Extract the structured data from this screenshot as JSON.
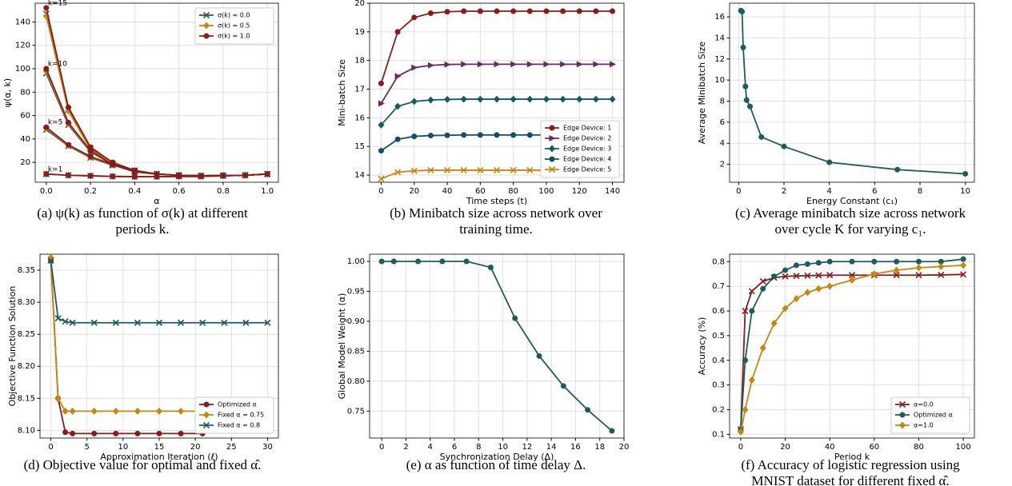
{
  "chart_data": [
    {
      "type": "line",
      "xlabel": "α",
      "ylabel": "ψ(α, k)",
      "caption": [
        "(a) ψ(k) as function of σ(k) at different",
        "periods k."
      ],
      "x": [
        0.0,
        0.1,
        0.2,
        0.3,
        0.4,
        0.5,
        0.6,
        0.7,
        0.8,
        0.9,
        1.0
      ],
      "xlim": [
        -0.05,
        1.05
      ],
      "xticks": [
        {
          "value": 0,
          "label": "0.0"
        },
        0.2,
        0.4,
        0.6,
        0.8,
        {
          "value": 1,
          "label": "1.0"
        }
      ],
      "ylim": [
        3,
        156
      ],
      "yticks": [
        20,
        40,
        60,
        80,
        100,
        120,
        140
      ],
      "grid": true,
      "legend": "upper-right",
      "curve_labels": [
        "k=15",
        "k=10",
        "k=5",
        "k=1"
      ],
      "series": [
        {
          "name": "σ(k) = 0.0",
          "color": "#1d5c5c",
          "marker": "x",
          "curves": [
            [
              147,
              65,
              32,
              19,
              13,
              10,
              9,
              8.5,
              8.8,
              9,
              10
            ],
            [
              96,
              52,
              29,
              18,
              12,
              10,
              9,
              8.5,
              8.8,
              9,
              10
            ],
            [
              48,
              34,
              24,
              17.5,
              13,
              10,
              9,
              8.5,
              8.8,
              9,
              10
            ],
            [
              10,
              9,
              8.5,
              8,
              7.8,
              7.8,
              8,
              8,
              8.5,
              9,
              10
            ]
          ]
        },
        {
          "name": "σ(k) = 0.5",
          "color": "#c8860a",
          "marker": "d",
          "curves": [
            [
              145,
              64,
              31,
              19,
              13,
              10,
              9,
              8.5,
              8.8,
              9,
              10
            ],
            [
              98,
              53,
              29.5,
              18,
              12,
              10,
              9,
              8.5,
              8.8,
              9,
              10
            ],
            [
              49,
              34.5,
              24.5,
              17.8,
              13,
              10,
              9,
              8.5,
              8.8,
              9,
              10
            ],
            [
              10,
              9,
              8.5,
              8,
              7.8,
              7.8,
              8,
              8,
              8.5,
              9,
              10
            ]
          ]
        },
        {
          "name": "σ(k) = 1.0",
          "color": "#8b1a1a",
          "marker": "o",
          "curves": [
            [
              152,
              67,
              33,
              20,
              13,
              10,
              9,
              8.5,
              8.8,
              9,
              10
            ],
            [
              100,
              54,
              30,
              18,
              12,
              10,
              9,
              8.5,
              8.8,
              9,
              10
            ],
            [
              50,
              35,
              25,
              18,
              13,
              10,
              9,
              8.5,
              8.8,
              9,
              10
            ],
            [
              10,
              9,
              8.5,
              8,
              7.8,
              7.8,
              8,
              8,
              8.5,
              9,
              10
            ]
          ]
        }
      ]
    },
    {
      "type": "line",
      "xlabel": "Time steps (t)",
      "ylabel": "Mini-batch Size",
      "caption": [
        "(b) Minibatch size across network over",
        "training time."
      ],
      "x": [
        0,
        10,
        20,
        30,
        40,
        50,
        60,
        70,
        80,
        90,
        100,
        110,
        120,
        130,
        140
      ],
      "xlim": [
        -7,
        147
      ],
      "xticks": [
        0,
        20,
        40,
        60,
        80,
        100,
        120,
        140
      ],
      "ylim": [
        13.75,
        20
      ],
      "yticks": [
        14,
        15,
        16,
        17,
        18,
        19,
        20
      ],
      "grid": true,
      "legend": "lower-right",
      "series": [
        {
          "name": "Edge Device: 1",
          "color": "#8b1a1a",
          "marker": "o",
          "values": [
            17.2,
            19.0,
            19.5,
            19.65,
            19.7,
            19.72,
            19.72,
            19.72,
            19.72,
            19.72,
            19.72,
            19.72,
            19.72,
            19.72,
            19.72
          ]
        },
        {
          "name": "Edge Device: 2",
          "color": "#6b2a5e",
          "marker": ">",
          "values": [
            16.5,
            17.45,
            17.75,
            17.83,
            17.86,
            17.87,
            17.87,
            17.87,
            17.87,
            17.87,
            17.87,
            17.87,
            17.87,
            17.87,
            17.87
          ]
        },
        {
          "name": "Edge Device: 3",
          "color": "#125e5e",
          "marker": "d",
          "values": [
            15.75,
            16.4,
            16.57,
            16.62,
            16.64,
            16.65,
            16.65,
            16.65,
            16.65,
            16.65,
            16.65,
            16.65,
            16.65,
            16.65,
            16.65
          ]
        },
        {
          "name": "Edge Device: 4",
          "color": "#124e6b",
          "marker": "o",
          "values": [
            14.85,
            15.25,
            15.35,
            15.38,
            15.39,
            15.4,
            15.4,
            15.4,
            15.4,
            15.4,
            15.4,
            15.4,
            15.4,
            15.4,
            15.4
          ]
        },
        {
          "name": "Edge Device: 5",
          "color": "#c8860a",
          "marker": "x",
          "values": [
            13.87,
            14.1,
            14.15,
            14.17,
            14.17,
            14.17,
            14.17,
            14.17,
            14.17,
            14.17,
            14.17,
            14.17,
            14.17,
            14.17,
            14.17
          ]
        }
      ]
    },
    {
      "type": "line",
      "xlabel": "Energy Constant (c₁)",
      "ylabel": "Average Minibatch Size",
      "caption": [
        "(c) Average minibatch size across network",
        "over cycle K for varying c₁."
      ],
      "x": [
        0.1,
        0.15,
        0.2,
        0.3,
        0.35,
        0.5,
        1,
        2,
        4,
        7,
        10
      ],
      "xlim": [
        -0.4,
        10.4
      ],
      "xticks": [
        0,
        2,
        4,
        6,
        8,
        10
      ],
      "ylim": [
        0.3,
        17.3
      ],
      "yticks": [
        2,
        4,
        6,
        8,
        10,
        12,
        14,
        16
      ],
      "grid": true,
      "series": [
        {
          "color": "#1d5c5c",
          "marker": "o",
          "values": [
            16.6,
            16.5,
            13.1,
            9.4,
            8.1,
            7.5,
            4.6,
            3.7,
            2.2,
            1.5,
            1.1
          ]
        }
      ]
    },
    {
      "type": "line",
      "xlabel": "Approximation Iteration (ℓ)",
      "ylabel": "Objective Function Solution",
      "caption": [
        "(d) Objective value for optimal and fixed α̂."
      ],
      "x": [
        0,
        1,
        2,
        3,
        6,
        9,
        12,
        15,
        18,
        21,
        24,
        27,
        30
      ],
      "xlim": [
        -1.5,
        31.5
      ],
      "xticks": [
        0,
        5,
        10,
        15,
        20,
        25,
        30
      ],
      "ylim": [
        8.088,
        8.375
      ],
      "yticks": [
        {
          "value": 8.1,
          "label": "8.10"
        },
        8.15,
        {
          "value": 8.2,
          "label": "8.20"
        },
        8.25,
        {
          "value": 8.3,
          "label": "8.30"
        },
        8.35
      ],
      "grid": true,
      "legend": "lower-right",
      "series": [
        {
          "name": "Optimized α",
          "color": "#8b1a1a",
          "marker": "o",
          "values": [
            8.365,
            8.15,
            8.097,
            8.095,
            8.095,
            8.095,
            8.095,
            8.095,
            8.095,
            8.095,
            null,
            null,
            null
          ]
        },
        {
          "name": "Fixed α = 0.75",
          "color": "#c8860a",
          "marker": "d",
          "values": [
            8.37,
            8.15,
            8.13,
            8.13,
            8.13,
            8.13,
            8.13,
            8.13,
            8.13,
            8.13,
            8.13,
            null,
            null
          ]
        },
        {
          "name": "Fixed α = 0.8",
          "color": "#1d5c5c",
          "marker": "x",
          "values": [
            8.365,
            8.275,
            8.27,
            8.268,
            8.268,
            8.268,
            8.268,
            8.268,
            8.268,
            8.268,
            8.268,
            8.268,
            8.268
          ]
        }
      ]
    },
    {
      "type": "line",
      "xlabel": "Synchronization Delay (Δ)",
      "ylabel": "Global Model Weight (α)",
      "caption": [
        "(e) α as function of time delay Δ."
      ],
      "x": [
        0,
        1,
        3,
        5,
        7,
        9,
        11,
        13,
        15,
        17,
        19
      ],
      "xlim": [
        -1,
        20
      ],
      "xticks": [
        0,
        2,
        4,
        6,
        8,
        10,
        12,
        14,
        16,
        18,
        20
      ],
      "ylim": [
        0.705,
        1.012
      ],
      "yticks": [
        0.75,
        {
          "value": 0.8,
          "label": "0.80"
        },
        0.85,
        {
          "value": 0.9,
          "label": "0.90"
        },
        0.95,
        {
          "value": 1,
          "label": "1.00"
        }
      ],
      "grid": true,
      "series": [
        {
          "color": "#1d5c5c",
          "marker": "o",
          "values": [
            1,
            1,
            1,
            1,
            1,
            0.99,
            0.905,
            0.842,
            0.792,
            0.752,
            0.717
          ]
        }
      ]
    },
    {
      "type": "line",
      "xlabel": "Period k",
      "ylabel": "Accuracy (%)",
      "caption": [
        "(f) Accuracy of logistic regression using",
        "MNIST dataset for different fixed α̂."
      ],
      "x": [
        0,
        2,
        5,
        10,
        15,
        20,
        25,
        30,
        35,
        40,
        50,
        60,
        70,
        80,
        90,
        100
      ],
      "xlim": [
        -5,
        105
      ],
      "xticks": [
        0,
        20,
        40,
        60,
        80,
        100
      ],
      "ylim": [
        0.085,
        0.83
      ],
      "yticks": [
        0.1,
        0.2,
        0.3,
        0.4,
        0.5,
        0.6,
        0.7,
        0.8
      ],
      "grid": true,
      "legend": "lower-right",
      "series": [
        {
          "name": "α=0.0",
          "color": "#8b1a1a",
          "marker": "x",
          "values": [
            0.12,
            0.6,
            0.68,
            0.72,
            0.735,
            0.74,
            0.742,
            0.743,
            0.744,
            0.745,
            0.745,
            0.745,
            0.745,
            0.745,
            0.746,
            0.748
          ]
        },
        {
          "name": "Optimized α",
          "color": "#1d5c5c",
          "marker": "o",
          "values": [
            0.12,
            0.4,
            0.6,
            0.69,
            0.74,
            0.765,
            0.785,
            0.79,
            0.795,
            0.8,
            0.8,
            0.8,
            0.8,
            0.8,
            0.8,
            0.81
          ]
        },
        {
          "name": "α=1.0",
          "color": "#c8860a",
          "marker": "d",
          "values": [
            0.11,
            0.2,
            0.32,
            0.45,
            0.55,
            0.61,
            0.65,
            0.675,
            0.69,
            0.7,
            0.725,
            0.75,
            0.765,
            0.775,
            0.78,
            0.785
          ]
        }
      ]
    }
  ]
}
